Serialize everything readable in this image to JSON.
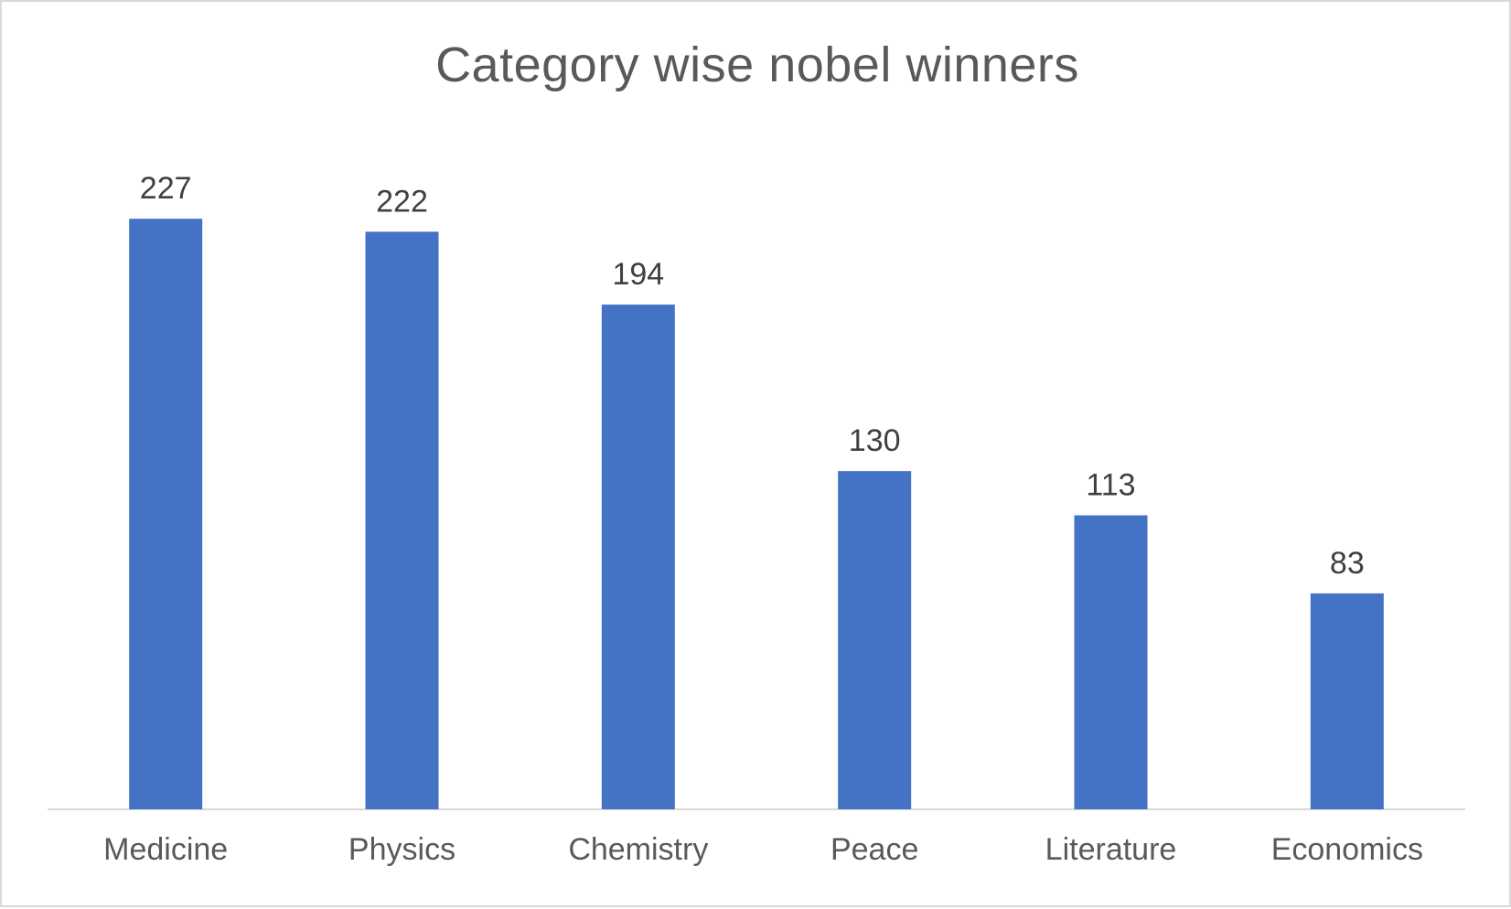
{
  "chart_data": {
    "type": "bar",
    "title": "Category wise nobel winners",
    "categories": [
      "Medicine",
      "Physics",
      "Chemistry",
      "Peace",
      "Literature",
      "Economics"
    ],
    "values": [
      227,
      222,
      194,
      130,
      113,
      83
    ],
    "xlabel": "",
    "ylabel": "",
    "ylim": [
      0,
      250
    ],
    "grid": false,
    "legend": "none",
    "bar_color": "#4472C4",
    "axis_color": "#d9d9d9"
  }
}
